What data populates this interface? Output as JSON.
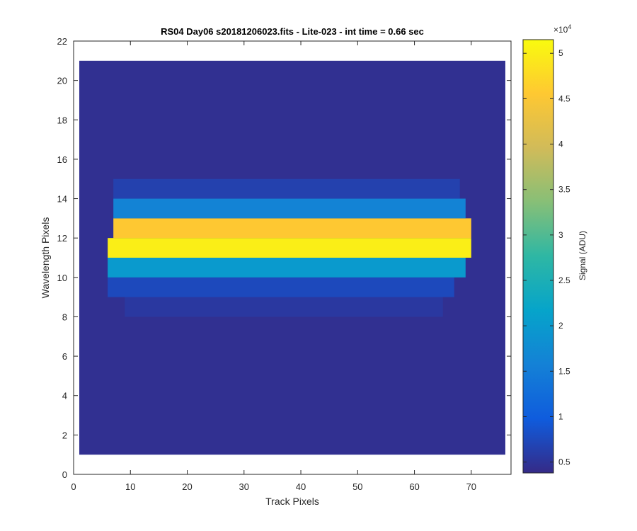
{
  "chart_data": {
    "type": "heatmap",
    "title": "RS04 Day06  s20181206023.fits - Lite-023 - int time = 0.66 sec",
    "xlabel": "Track Pixels",
    "ylabel": "Wavelength Pixels",
    "xlim": [
      0,
      77
    ],
    "ylim": [
      0,
      22
    ],
    "xticks": [
      0,
      10,
      20,
      30,
      40,
      50,
      60,
      70
    ],
    "yticks": [
      0,
      2,
      4,
      6,
      8,
      10,
      12,
      14,
      16,
      18,
      20,
      22
    ],
    "x_extent": [
      1,
      76
    ],
    "y_extent": [
      1,
      21
    ],
    "colormap": "parula",
    "clim": [
      3800,
      51500
    ],
    "colorbar": {
      "label": "Signal (ADU)",
      "multiplier": "×10",
      "multiplier_exponent": "4",
      "ticks": [
        5000,
        10000,
        15000,
        20000,
        25000,
        30000,
        35000,
        40000,
        45000,
        50000
      ],
      "tick_labels": [
        "0.5",
        "1",
        "1.5",
        "2",
        "2.5",
        "3",
        "3.5",
        "4",
        "4.5",
        "5"
      ]
    },
    "background_value": 4500,
    "rows": [
      {
        "y": 8,
        "x_start": 9,
        "x_end": 65,
        "value": 5500
      },
      {
        "y": 9,
        "x_start": 6,
        "x_end": 67,
        "value": 7500
      },
      {
        "y": 10,
        "x_start": 6,
        "x_end": 69,
        "value": 20000
      },
      {
        "y": 11,
        "x_start": 6,
        "x_end": 70,
        "value": 50000
      },
      {
        "y": 12,
        "x_start": 7,
        "x_end": 70,
        "value": 45500
      },
      {
        "y": 13,
        "x_start": 7,
        "x_end": 69,
        "value": 16000
      },
      {
        "y": 14,
        "x_start": 7,
        "x_end": 68,
        "value": 6500
      }
    ]
  }
}
